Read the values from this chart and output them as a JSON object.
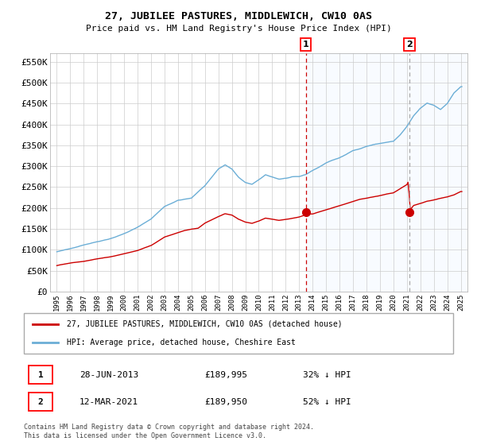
{
  "title": "27, JUBILEE PASTURES, MIDDLEWICH, CW10 0AS",
  "subtitle": "Price paid vs. HM Land Registry's House Price Index (HPI)",
  "ylim": [
    0,
    570000
  ],
  "yticks": [
    0,
    50000,
    100000,
    150000,
    200000,
    250000,
    300000,
    350000,
    400000,
    450000,
    500000,
    550000
  ],
  "ytick_labels": [
    "£0",
    "£50K",
    "£100K",
    "£150K",
    "£200K",
    "£250K",
    "£300K",
    "£350K",
    "£400K",
    "£450K",
    "£500K",
    "£550K"
  ],
  "hpi_color": "#6baed6",
  "price_color": "#cc0000",
  "marker_color": "#cc0000",
  "plot_bg_color": "#ffffff",
  "shade_color": "#ddeeff",
  "grid_color": "#cccccc",
  "event1_x": 2013.49,
  "event2_x": 2021.19,
  "event1_price": 189995,
  "event2_price": 189950,
  "legend_label_red": "27, JUBILEE PASTURES, MIDDLEWICH, CW10 0AS (detached house)",
  "legend_label_blue": "HPI: Average price, detached house, Cheshire East",
  "footer": "Contains HM Land Registry data © Crown copyright and database right 2024.\nThis data is licensed under the Open Government Licence v3.0.",
  "table_rows": [
    {
      "num": "1",
      "date": "28-JUN-2013",
      "price": "£189,995",
      "hpi": "32% ↓ HPI"
    },
    {
      "num": "2",
      "date": "12-MAR-2021",
      "price": "£189,950",
      "hpi": "52% ↓ HPI"
    }
  ],
  "xtick_years": [
    1995,
    1996,
    1997,
    1998,
    1999,
    2000,
    2001,
    2002,
    2003,
    2004,
    2005,
    2006,
    2007,
    2008,
    2009,
    2010,
    2011,
    2012,
    2013,
    2014,
    2015,
    2016,
    2017,
    2018,
    2019,
    2020,
    2021,
    2022,
    2023,
    2024,
    2025
  ],
  "xlim": [
    1994.5,
    2025.5
  ]
}
